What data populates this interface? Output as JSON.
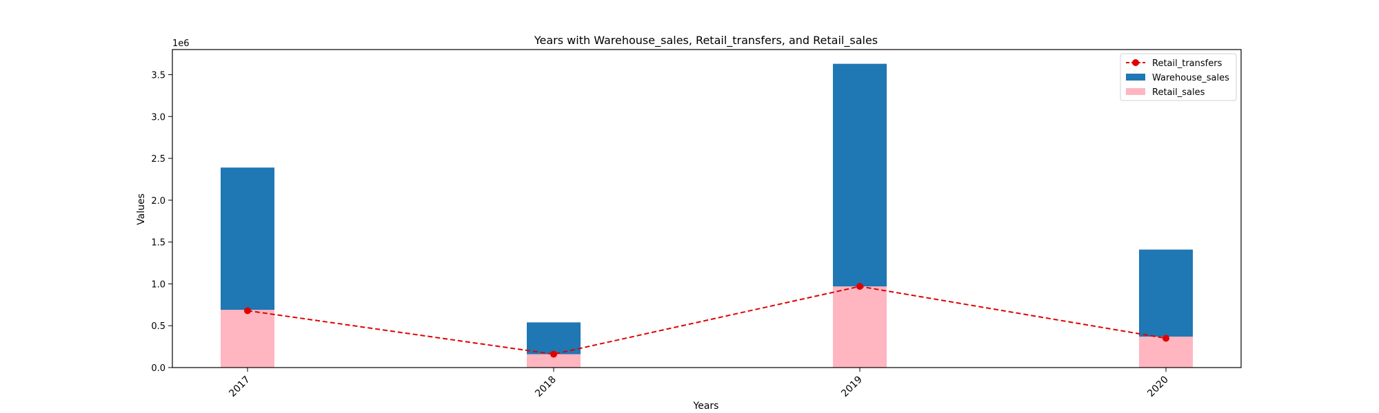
{
  "chart_data": {
    "type": "bar",
    "title": "Years with Warehouse_sales, Retail_transfers, and Retail_sales",
    "xlabel": "Years",
    "ylabel": "Values",
    "y_offset_label": "1e6",
    "categories": [
      "2017",
      "2018",
      "2019",
      "2020"
    ],
    "ylim": [
      0,
      3.8
    ],
    "yticks": [
      "0.0",
      "0.5",
      "1.0",
      "1.5",
      "2.0",
      "2.5",
      "3.0",
      "3.5"
    ],
    "grid": false,
    "legend_position": "top-right",
    "series": [
      {
        "name": "Retail_transfers",
        "kind": "line",
        "color": "#e00000",
        "style": "dashed",
        "marker": "circle",
        "values": [
          0.68,
          0.16,
          0.97,
          0.35
        ]
      },
      {
        "name": "Warehouse_sales",
        "kind": "bar",
        "color": "#1f77b4",
        "values": [
          2.39,
          0.54,
          3.63,
          1.41
        ]
      },
      {
        "name": "Retail_sales",
        "kind": "bar",
        "color": "#ffb6c1",
        "values": [
          0.69,
          0.16,
          0.97,
          0.37
        ]
      }
    ]
  }
}
